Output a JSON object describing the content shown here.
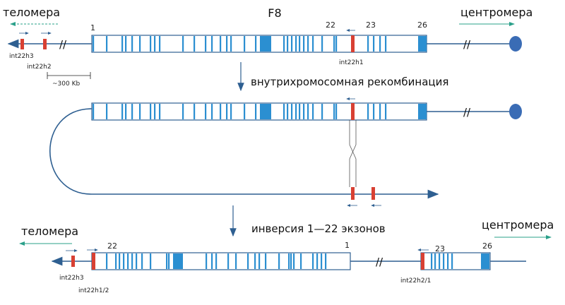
{
  "title": "F8",
  "colors": {
    "line": "#2e5f91",
    "exon": "#2b8fd1",
    "exon_light": "#5fb6e8",
    "intron_box": "#ffffff",
    "marker": "#d84033",
    "centromere": "#3a6cb5",
    "arrow_teal": "#2aa08a"
  },
  "top": {
    "telomere_label": "теломера",
    "centromere_label": "центромера",
    "exon_numbers": [
      "1",
      "22",
      "23",
      "26"
    ],
    "int22h3": "int22h3",
    "int22h2": "int22h2",
    "int22h1": "int22h1",
    "scale_label": "~300 Kb",
    "break_mark": "//"
  },
  "middle": {
    "step_label": "внутрихромосомная рекомбинация"
  },
  "bottom": {
    "step_label": "инверсия 1—22 экзонов",
    "telomere_label": "теломера",
    "centromere_label": "центромера",
    "exon_numbers": [
      "22",
      "1",
      "23",
      "26"
    ],
    "int22h3": "int22h3",
    "int22h1_2": "int22h1/2",
    "int22h2_1": "int22h2/1"
  }
}
